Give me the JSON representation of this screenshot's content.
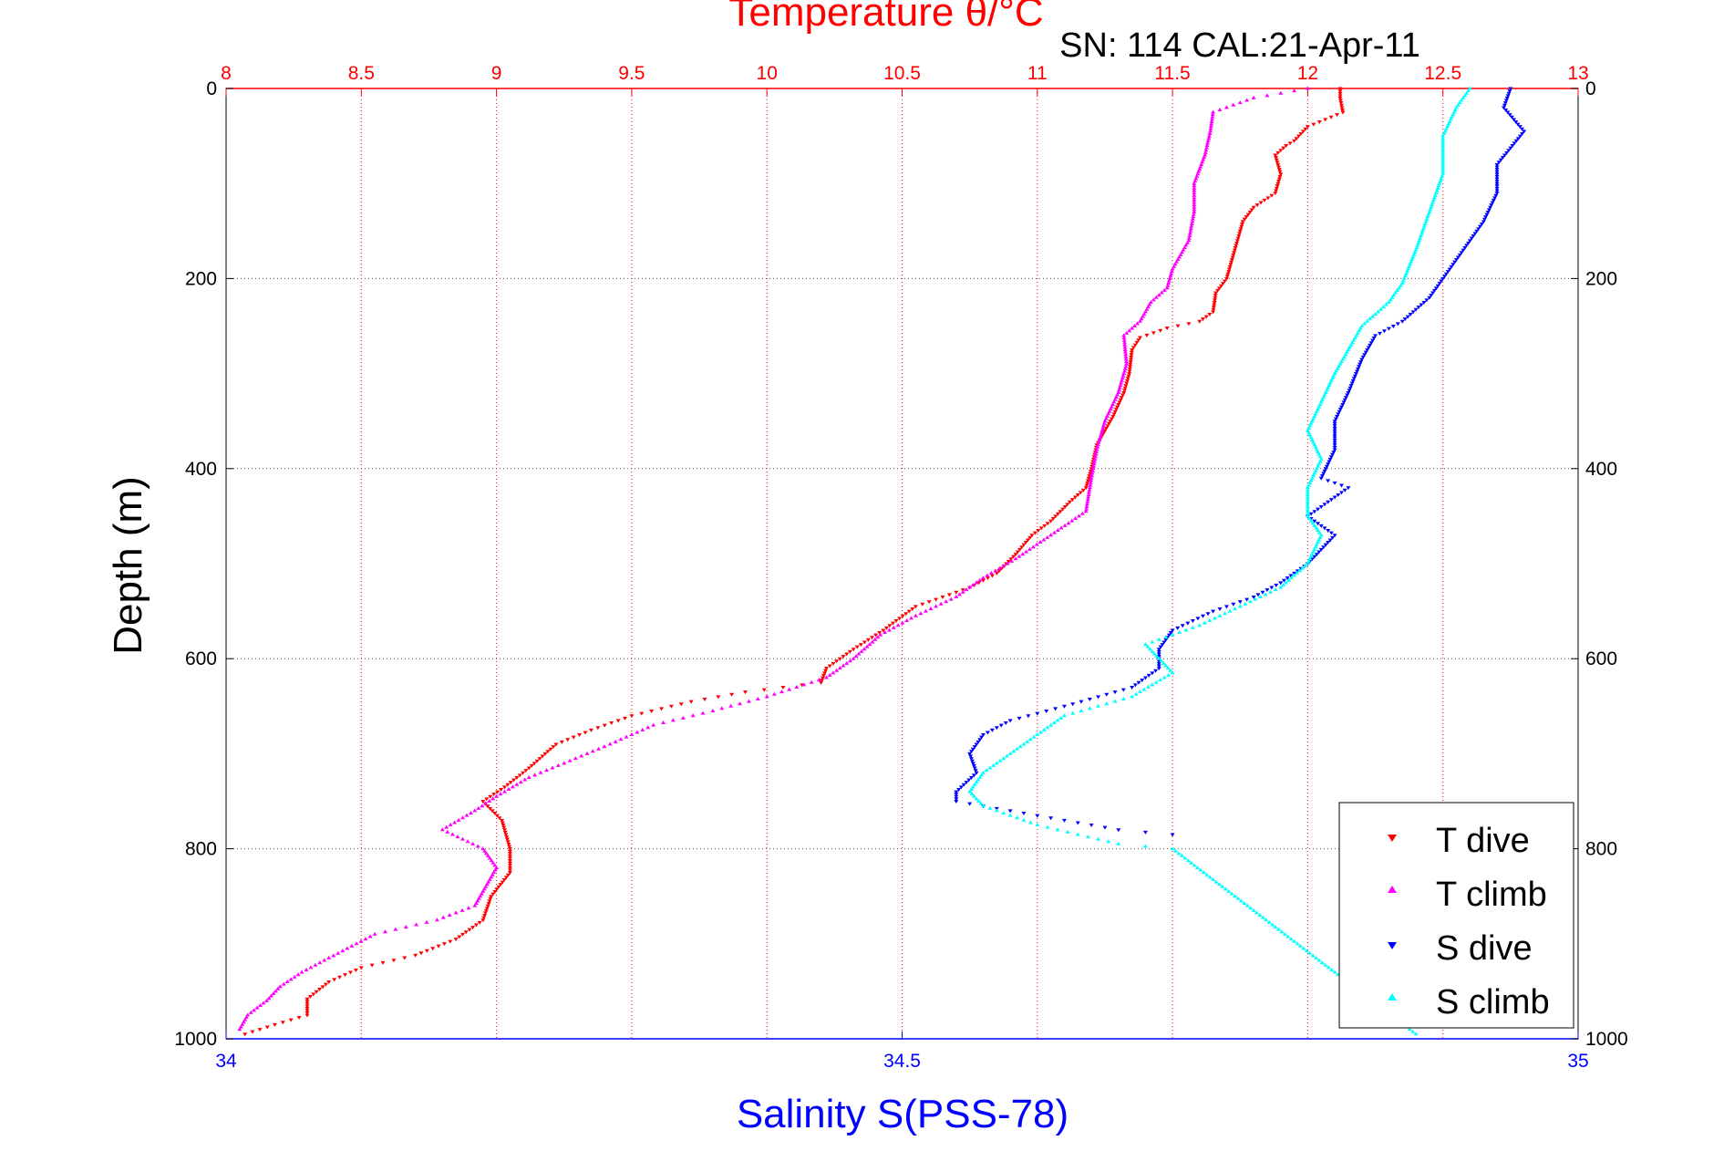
{
  "chart_data": {
    "type": "scatter",
    "title": "Temperature θ/°C",
    "annotation": "SN: 114  CAL:21-Apr-11",
    "ylabel": "Depth (m)",
    "xlabel": "Salinity S(PSS-78)",
    "top_axis": {
      "label": "Temperature θ/°C",
      "range": [
        8,
        13
      ],
      "ticks": [
        "8",
        "8.5",
        "9",
        "9.5",
        "10",
        "10.5",
        "11",
        "11.5",
        "12",
        "12.5",
        "13"
      ],
      "color": "#ff0000"
    },
    "bottom_axis": {
      "label": "Salinity S(PSS-78)",
      "range": [
        34,
        35
      ],
      "ticks": [
        "34",
        "34.5",
        "35"
      ],
      "color": "#0000ff"
    },
    "y_axis": {
      "range": [
        0,
        1000
      ],
      "reversed": true,
      "ticks": [
        "0",
        "200",
        "400",
        "600",
        "800",
        "1000"
      ]
    },
    "grid": true,
    "legend_position": "bottom-right",
    "series": [
      {
        "name": "T dive",
        "axis": "temperature",
        "color": "#ff0000",
        "marker": "triangle-down",
        "points": [
          [
            12.12,
            0
          ],
          [
            12.12,
            10
          ],
          [
            12.13,
            25
          ],
          [
            12.0,
            40
          ],
          [
            11.95,
            55
          ],
          [
            11.92,
            60
          ],
          [
            11.88,
            70
          ],
          [
            11.9,
            90
          ],
          [
            11.88,
            110
          ],
          [
            11.8,
            125
          ],
          [
            11.76,
            140
          ],
          [
            11.74,
            160
          ],
          [
            11.72,
            180
          ],
          [
            11.7,
            200
          ],
          [
            11.66,
            215
          ],
          [
            11.65,
            235
          ],
          [
            11.6,
            245
          ],
          [
            11.48,
            252
          ],
          [
            11.38,
            262
          ],
          [
            11.35,
            275
          ],
          [
            11.34,
            300
          ],
          [
            11.32,
            320
          ],
          [
            11.28,
            345
          ],
          [
            11.22,
            375
          ],
          [
            11.2,
            400
          ],
          [
            11.18,
            420
          ],
          [
            11.12,
            435
          ],
          [
            11.05,
            455
          ],
          [
            10.98,
            470
          ],
          [
            10.92,
            490
          ],
          [
            10.85,
            510
          ],
          [
            10.75,
            525
          ],
          [
            10.55,
            545
          ],
          [
            10.43,
            570
          ],
          [
            10.32,
            590
          ],
          [
            10.22,
            610
          ],
          [
            10.2,
            625
          ],
          [
            9.92,
            635
          ],
          [
            9.72,
            645
          ],
          [
            9.5,
            660
          ],
          [
            9.35,
            675
          ],
          [
            9.22,
            690
          ],
          [
            9.12,
            715
          ],
          [
            9.03,
            735
          ],
          [
            8.95,
            750
          ],
          [
            9.02,
            770
          ],
          [
            9.05,
            800
          ],
          [
            9.05,
            825
          ],
          [
            8.98,
            850
          ],
          [
            8.95,
            875
          ],
          [
            8.85,
            895
          ],
          [
            8.7,
            912
          ],
          [
            8.5,
            925
          ],
          [
            8.38,
            940
          ],
          [
            8.3,
            958
          ],
          [
            8.3,
            975
          ],
          [
            8.18,
            985
          ],
          [
            8.07,
            995
          ]
        ]
      },
      {
        "name": "T climb",
        "axis": "temperature",
        "color": "#ff00ff",
        "marker": "triangle-up",
        "points": [
          [
            12.0,
            0
          ],
          [
            11.8,
            10
          ],
          [
            11.65,
            25
          ],
          [
            11.64,
            45
          ],
          [
            11.62,
            70
          ],
          [
            11.58,
            100
          ],
          [
            11.58,
            130
          ],
          [
            11.56,
            160
          ],
          [
            11.5,
            190
          ],
          [
            11.48,
            210
          ],
          [
            11.42,
            225
          ],
          [
            11.38,
            245
          ],
          [
            11.32,
            260
          ],
          [
            11.33,
            290
          ],
          [
            11.3,
            320
          ],
          [
            11.25,
            350
          ],
          [
            11.22,
            380
          ],
          [
            11.2,
            410
          ],
          [
            11.18,
            445
          ],
          [
            11.05,
            470
          ],
          [
            10.92,
            495
          ],
          [
            10.8,
            515
          ],
          [
            10.7,
            535
          ],
          [
            10.55,
            555
          ],
          [
            10.42,
            575
          ],
          [
            10.32,
            600
          ],
          [
            10.22,
            620
          ],
          [
            10.0,
            640
          ],
          [
            9.8,
            655
          ],
          [
            9.58,
            670
          ],
          [
            9.42,
            690
          ],
          [
            9.25,
            710
          ],
          [
            9.12,
            725
          ],
          [
            9.0,
            745
          ],
          [
            8.92,
            760
          ],
          [
            8.8,
            780
          ],
          [
            8.95,
            800
          ],
          [
            9.0,
            820
          ],
          [
            8.95,
            845
          ],
          [
            8.92,
            860
          ],
          [
            8.78,
            875
          ],
          [
            8.55,
            890
          ],
          [
            8.38,
            915
          ],
          [
            8.28,
            930
          ],
          [
            8.2,
            945
          ],
          [
            8.15,
            960
          ],
          [
            8.08,
            975
          ],
          [
            8.05,
            990
          ]
        ]
      },
      {
        "name": "S dive",
        "axis": "salinity",
        "color": "#0000ff",
        "marker": "triangle-down",
        "points": [
          [
            34.95,
            0
          ],
          [
            34.945,
            20
          ],
          [
            34.96,
            45
          ],
          [
            34.94,
            80
          ],
          [
            34.94,
            110
          ],
          [
            34.93,
            140
          ],
          [
            34.91,
            180
          ],
          [
            34.89,
            220
          ],
          [
            34.87,
            245
          ],
          [
            34.85,
            260
          ],
          [
            34.84,
            285
          ],
          [
            34.83,
            320
          ],
          [
            34.82,
            350
          ],
          [
            34.82,
            380
          ],
          [
            34.81,
            410
          ],
          [
            34.83,
            420
          ],
          [
            34.8,
            450
          ],
          [
            34.82,
            470
          ],
          [
            34.8,
            500
          ],
          [
            34.78,
            520
          ],
          [
            34.76,
            535
          ],
          [
            34.73,
            550
          ],
          [
            34.7,
            570
          ],
          [
            34.69,
            590
          ],
          [
            34.69,
            610
          ],
          [
            34.67,
            630
          ],
          [
            34.62,
            650
          ],
          [
            34.58,
            665
          ],
          [
            34.56,
            680
          ],
          [
            34.55,
            700
          ],
          [
            34.555,
            720
          ],
          [
            34.54,
            740
          ],
          [
            34.54,
            750
          ],
          [
            34.6,
            765
          ],
          [
            34.66,
            780
          ],
          [
            34.7,
            785
          ]
        ]
      },
      {
        "name": "S climb",
        "axis": "salinity",
        "color": "#00ffff",
        "marker": "triangle-up",
        "points": [
          [
            34.92,
            0
          ],
          [
            34.91,
            20
          ],
          [
            34.9,
            50
          ],
          [
            34.9,
            90
          ],
          [
            34.89,
            130
          ],
          [
            34.88,
            170
          ],
          [
            34.87,
            205
          ],
          [
            34.86,
            225
          ],
          [
            34.84,
            250
          ],
          [
            34.83,
            275
          ],
          [
            34.82,
            300
          ],
          [
            34.81,
            330
          ],
          [
            34.8,
            360
          ],
          [
            34.81,
            390
          ],
          [
            34.8,
            420
          ],
          [
            34.8,
            450
          ],
          [
            34.81,
            470
          ],
          [
            34.8,
            500
          ],
          [
            34.78,
            525
          ],
          [
            34.75,
            545
          ],
          [
            34.72,
            565
          ],
          [
            34.68,
            585
          ],
          [
            34.69,
            600
          ],
          [
            34.7,
            615
          ],
          [
            34.67,
            640
          ],
          [
            34.62,
            660
          ],
          [
            34.6,
            680
          ],
          [
            34.58,
            700
          ],
          [
            34.56,
            720
          ],
          [
            34.55,
            740
          ],
          [
            34.56,
            755
          ],
          [
            34.6,
            775
          ],
          [
            34.66,
            795
          ],
          [
            34.7,
            800
          ],
          [
            34.88,
            995
          ]
        ]
      }
    ]
  }
}
